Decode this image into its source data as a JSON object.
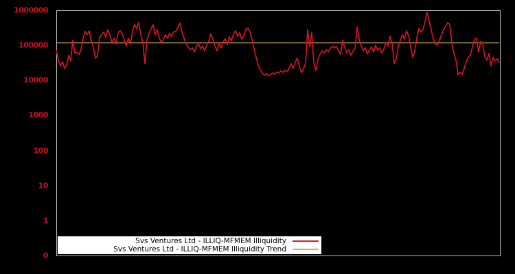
{
  "chart_data": {
    "type": "line",
    "title": "",
    "background_color": "#000000",
    "plot_border_color": "#c0c0c0",
    "grid": false,
    "x_axis": {
      "tick_labels": [],
      "visible": true
    },
    "y_axis": {
      "scale": "log",
      "range": [
        0.1,
        1000000
      ],
      "tick_labels": [
        "1000000",
        "100000",
        "10000",
        "1000",
        "100",
        "10",
        "1",
        "0"
      ],
      "tick_values": [
        1000000,
        100000,
        10000,
        1000,
        100,
        10,
        1,
        0.1
      ],
      "tick_color": "#cc1020"
    },
    "legend": {
      "position": "bottom-left-inside",
      "background": "#ffffff",
      "text_color": "#000000"
    },
    "series": [
      {
        "name": "Svs Ventures Ltd - ILLIQ-MFMEM Illiquidity",
        "color": "#dd1524",
        "type": "line",
        "values": [
          73000,
          38000,
          26000,
          34000,
          22000,
          27000,
          52000,
          36000,
          140000,
          60000,
          62000,
          55000,
          75000,
          160000,
          250000,
          200000,
          260000,
          130000,
          90000,
          42000,
          50000,
          170000,
          200000,
          240000,
          170000,
          280000,
          200000,
          120000,
          160000,
          110000,
          230000,
          260000,
          220000,
          140000,
          95000,
          160000,
          110000,
          260000,
          400000,
          300000,
          450000,
          200000,
          120000,
          30000,
          140000,
          220000,
          300000,
          390000,
          200000,
          280000,
          160000,
          117000,
          150000,
          200000,
          160000,
          220000,
          180000,
          240000,
          250000,
          330000,
          430000,
          240000,
          160000,
          110000,
          90000,
          75000,
          85000,
          65000,
          95000,
          110000,
          80000,
          95000,
          70000,
          100000,
          130000,
          215000,
          150000,
          95000,
          70000,
          115000,
          85000,
          125000,
          155000,
          105000,
          175000,
          135000,
          210000,
          260000,
          180000,
          230000,
          150000,
          190000,
          290000,
          310000,
          240000,
          150000,
          80000,
          45000,
          28000,
          20000,
          16000,
          14000,
          15500,
          13500,
          14500,
          16500,
          15000,
          17500,
          16000,
          18500,
          17000,
          19500,
          18000,
          21000,
          30000,
          22000,
          33000,
          43000,
          25000,
          16500,
          22000,
          30000,
          280000,
          90000,
          230000,
          31000,
          19000,
          40000,
          56000,
          70000,
          60000,
          75000,
          65000,
          81000,
          95000,
          85000,
          92000,
          70000,
          56000,
          140000,
          90000,
          60000,
          75000,
          52000,
          68000,
          80000,
          330000,
          150000,
          95000,
          70000,
          85000,
          56000,
          75000,
          90000,
          65000,
          100000,
          72000,
          85000,
          60000,
          78000,
          120000,
          95000,
          180000,
          120000,
          30000,
          42000,
          90000,
          140000,
          200000,
          150000,
          260000,
          190000,
          90000,
          45000,
          70000,
          160000,
          300000,
          240000,
          280000,
          480000,
          870000,
          500000,
          280000,
          150000,
          110000,
          100000,
          140000,
          200000,
          280000,
          360000,
          440000,
          400000,
          120000,
          60000,
          38000,
          14500,
          17000,
          15000,
          22000,
          35000,
          46000,
          52000,
          90000,
          150000,
          160000,
          65000,
          128000,
          110000,
          48000,
          38000,
          58000,
          26000,
          46000,
          36000,
          41000,
          33000
        ]
      },
      {
        "name": "Svs Ventures Ltd - ILLIQ-MFMEM Illiquidity Trend",
        "color": "#d4af54",
        "type": "constant-line",
        "value": 117000
      }
    ]
  }
}
